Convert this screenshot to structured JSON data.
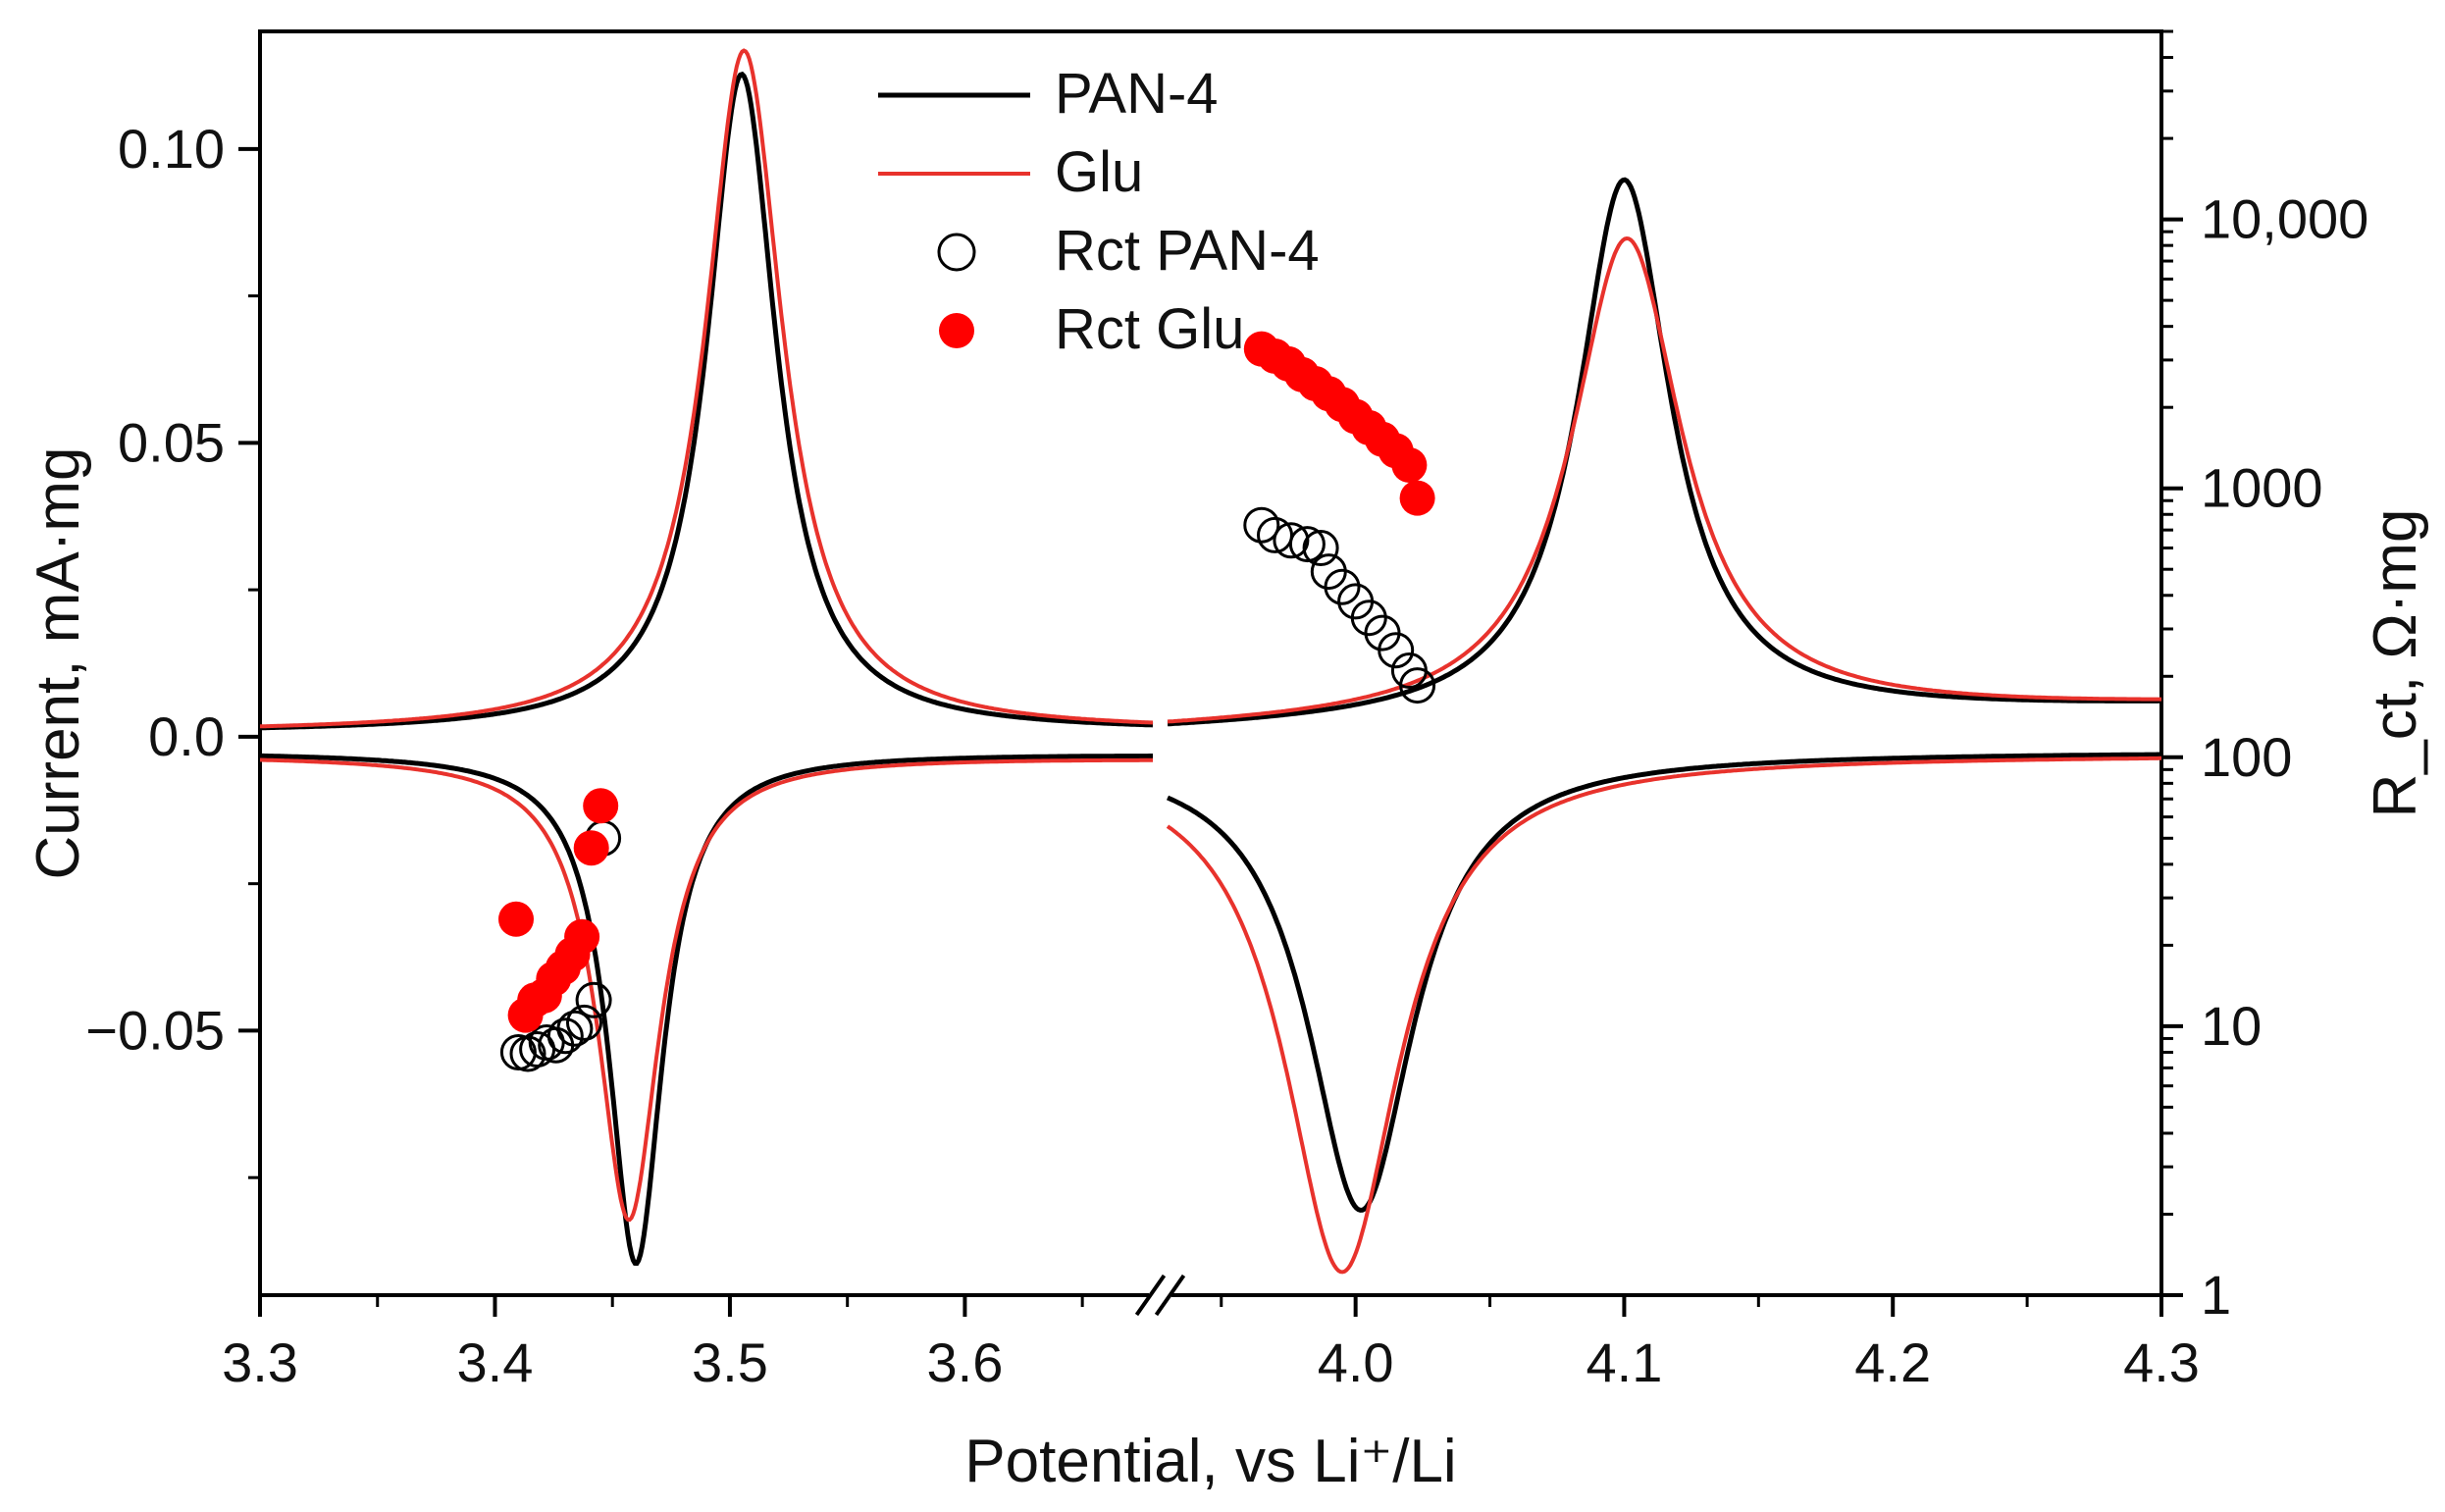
{
  "chart_data": {
    "type": "line",
    "title": "",
    "xlabel": "Potential, vs Li⁺/Li",
    "ylabel_left": "Current, mA·mg",
    "ylabel_right": "R_ct, Ω·mg",
    "axis_break": {
      "from": 3.68,
      "to": 3.93,
      "symbol": "//"
    },
    "xticks_left": [
      3.3,
      3.4,
      3.5,
      3.6
    ],
    "xticks_right": [
      4.0,
      4.1,
      4.2,
      4.3
    ],
    "xtick_labels_left": [
      "3.3",
      "3.4",
      "3.5",
      "3.6"
    ],
    "xtick_labels_right": [
      "4.0",
      "4.1",
      "4.2",
      "4.3"
    ],
    "xlim_left": [
      3.3,
      3.68
    ],
    "xlim_right": [
      3.93,
      4.3
    ],
    "ylim_left": [
      -0.095,
      0.12
    ],
    "yticks_left": [
      0.1,
      0.05,
      0.0,
      -0.05
    ],
    "ytick_labels_left": [
      "0.10",
      "0.05",
      "0.0",
      "−0.05"
    ],
    "ylim_right_log": [
      1,
      50000
    ],
    "yticks_right": [
      10000,
      1000,
      100,
      10,
      1
    ],
    "ytick_labels_right": [
      "10,000",
      "1000",
      "100",
      "10",
      "1"
    ],
    "legend": {
      "position": "top-center",
      "entries": [
        {
          "label": "PAN-4",
          "kind": "line",
          "color": "#000000"
        },
        {
          "label": "Glu",
          "kind": "line",
          "color": "#e8322c"
        },
        {
          "label": "Rct PAN-4",
          "kind": "open-circle",
          "color": "#000000"
        },
        {
          "label": "Rct Glu",
          "kind": "filled-circle",
          "color": "#ff0000"
        }
      ]
    },
    "series": [
      {
        "name": "PAN-4",
        "axis": "left",
        "color": "#000000",
        "anodic_peaks": [
          {
            "x": 3.505,
            "y": 0.112,
            "width": 0.018
          },
          {
            "x": 4.1,
            "y": 0.092,
            "width": 0.021
          }
        ],
        "cathodic_peaks": [
          {
            "x": 3.46,
            "y": -0.087,
            "width": 0.014
          },
          {
            "x": 4.002,
            "y": -0.078,
            "width": 0.024
          }
        ]
      },
      {
        "name": "Glu",
        "axis": "left",
        "color": "#e8322c",
        "anodic_peaks": [
          {
            "x": 3.506,
            "y": 0.116,
            "width": 0.02
          },
          {
            "x": 4.101,
            "y": 0.082,
            "width": 0.025
          }
        ],
        "cathodic_peaks": [
          {
            "x": 3.457,
            "y": -0.079,
            "width": 0.016
          },
          {
            "x": 3.995,
            "y": -0.088,
            "width": 0.026
          }
        ]
      },
      {
        "name": "Rct PAN-4",
        "axis": "right",
        "marker": "open-circle",
        "color": "#000000",
        "points": [
          [
            3.41,
            8.0
          ],
          [
            3.414,
            7.9
          ],
          [
            3.418,
            8.2
          ],
          [
            3.422,
            8.7
          ],
          [
            3.426,
            8.5
          ],
          [
            3.43,
            9.2
          ],
          [
            3.434,
            9.8
          ],
          [
            3.438,
            10.3
          ],
          [
            3.442,
            12.5
          ],
          [
            3.446,
            50.0
          ],
          [
            3.965,
            730
          ],
          [
            3.97,
            670
          ],
          [
            3.976,
            640
          ],
          [
            3.982,
            620
          ],
          [
            3.987,
            600
          ],
          [
            3.99,
            490
          ],
          [
            3.995,
            430
          ],
          [
            4.0,
            380
          ],
          [
            4.005,
            330
          ],
          [
            4.01,
            290
          ],
          [
            4.015,
            250
          ],
          [
            4.02,
            210
          ],
          [
            4.023,
            185
          ]
        ]
      },
      {
        "name": "Rct Glu",
        "axis": "right",
        "marker": "filled-circle",
        "color": "#ff0000",
        "points": [
          [
            3.409,
            25.0
          ],
          [
            3.413,
            11.0
          ],
          [
            3.417,
            12.5
          ],
          [
            3.421,
            13.0
          ],
          [
            3.425,
            15.0
          ],
          [
            3.429,
            16.5
          ],
          [
            3.433,
            18.5
          ],
          [
            3.437,
            21.5
          ],
          [
            3.441,
            46.0
          ],
          [
            3.445,
            66.0
          ],
          [
            3.965,
            3300
          ],
          [
            3.97,
            3100
          ],
          [
            3.975,
            2900
          ],
          [
            3.98,
            2650
          ],
          [
            3.985,
            2450
          ],
          [
            3.99,
            2250
          ],
          [
            3.995,
            2050
          ],
          [
            4.0,
            1850
          ],
          [
            4.005,
            1680
          ],
          [
            4.01,
            1520
          ],
          [
            4.015,
            1380
          ],
          [
            4.02,
            1220
          ],
          [
            4.023,
            920
          ]
        ]
      }
    ]
  }
}
